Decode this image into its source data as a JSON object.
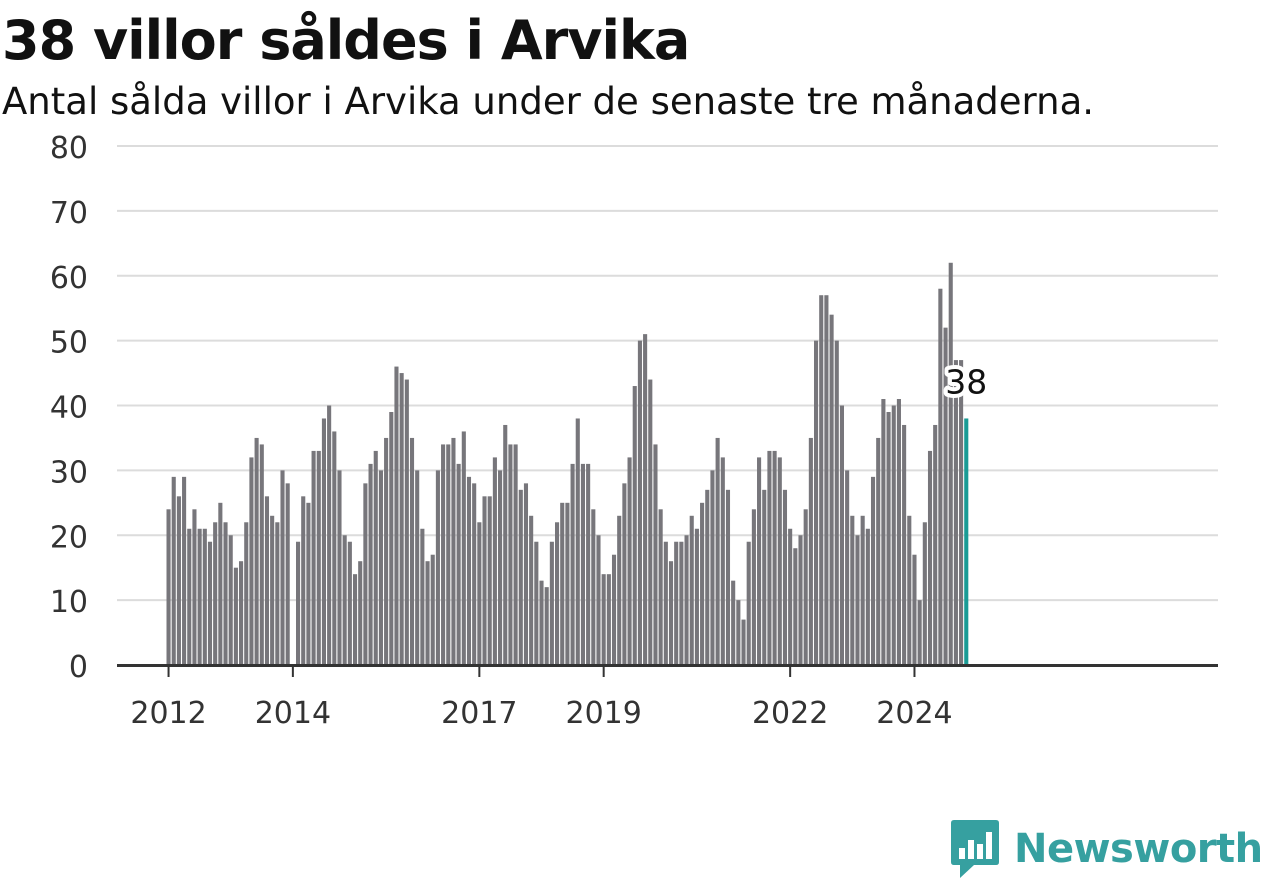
{
  "header": {
    "title": "38 villor såldes i Arvika",
    "subtitle": "Antal sålda villor i Arvika under de senaste tre månaderna."
  },
  "brand": {
    "name": "Newsworthy",
    "icon": "bar-chart-speech-bubble-icon",
    "color": "#36a0a0"
  },
  "colors": {
    "bar": "#77767b",
    "highlight": "#1a9b95",
    "grid": "#dcdcdc",
    "axis": "#333333"
  },
  "chart_data": {
    "type": "bar",
    "x_start": "2012-01",
    "x_end": "2024-09",
    "x_ticks": [
      "2012",
      "2014",
      "2017",
      "2019",
      "2022",
      "2024"
    ],
    "y_ticks": [
      0,
      10,
      20,
      30,
      40,
      50,
      60,
      70,
      80
    ],
    "ylim": [
      0,
      80
    ],
    "grid": true,
    "legend": "none",
    "highlight_label": "38",
    "values": [
      24,
      29,
      26,
      29,
      21,
      24,
      21,
      21,
      19,
      22,
      25,
      22,
      20,
      15,
      16,
      22,
      32,
      35,
      34,
      26,
      23,
      22,
      30,
      28,
      0,
      19,
      26,
      25,
      33,
      33,
      38,
      40,
      36,
      30,
      20,
      19,
      14,
      16,
      28,
      31,
      33,
      30,
      35,
      39,
      46,
      45,
      44,
      35,
      30,
      21,
      16,
      17,
      30,
      34,
      34,
      35,
      31,
      36,
      29,
      28,
      22,
      26,
      26,
      32,
      30,
      37,
      34,
      34,
      27,
      28,
      23,
      19,
      13,
      12,
      19,
      22,
      25,
      25,
      31,
      38,
      31,
      31,
      24,
      20,
      14,
      14,
      17,
      23,
      28,
      32,
      43,
      50,
      51,
      44,
      34,
      24,
      19,
      16,
      19,
      19,
      20,
      23,
      21,
      25,
      27,
      30,
      35,
      32,
      27,
      13,
      10,
      7,
      19,
      24,
      32,
      27,
      33,
      33,
      32,
      27,
      21,
      18,
      20,
      24,
      35,
      50,
      57,
      57,
      54,
      50,
      40,
      30,
      23,
      20,
      23,
      21,
      29,
      35,
      41,
      39,
      40,
      41,
      37,
      23,
      17,
      10,
      22,
      33,
      37,
      58,
      52,
      62,
      47,
      47,
      38
    ]
  }
}
